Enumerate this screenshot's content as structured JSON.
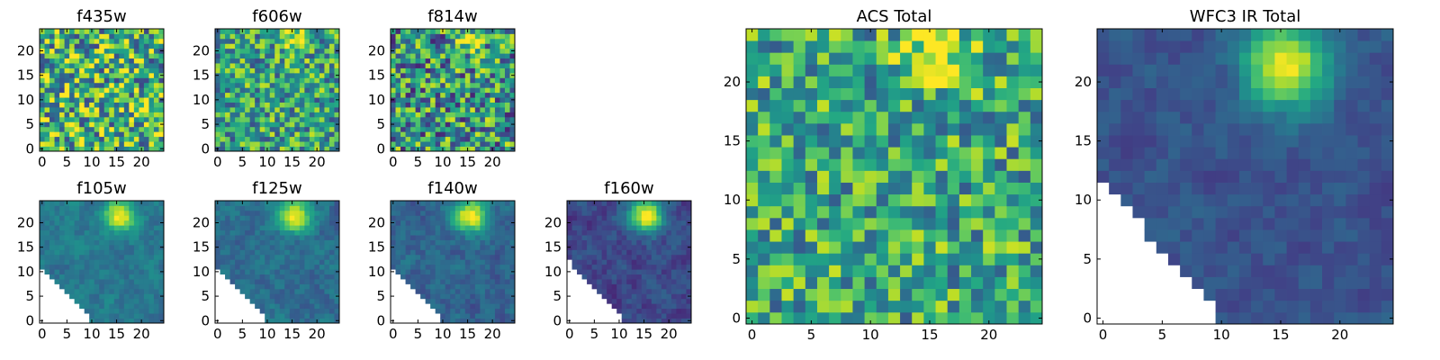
{
  "figure": {
    "colormap": "viridis",
    "background": "#ffffff"
  },
  "chart_data": [
    {
      "type": "heatmap",
      "title": "f435w",
      "xticks": [
        "0",
        "5",
        "10",
        "15",
        "20"
      ],
      "yticks": [
        "0",
        "5",
        "10",
        "15",
        "20"
      ],
      "xlim": [
        0,
        25
      ],
      "ylim": [
        0,
        25
      ],
      "grid": false,
      "content": "noise",
      "seed": 11,
      "mean": 0.66,
      "spread": 0.45,
      "blob": null,
      "mask": null
    },
    {
      "type": "heatmap",
      "title": "f606w",
      "xticks": [
        "0",
        "5",
        "10",
        "15",
        "20"
      ],
      "yticks": [
        "0",
        "5",
        "10",
        "15",
        "20"
      ],
      "xlim": [
        0,
        25
      ],
      "ylim": [
        0,
        25
      ],
      "grid": false,
      "content": "noise",
      "seed": 23,
      "mean": 0.58,
      "spread": 0.34,
      "blob": {
        "x": 15.5,
        "y": 22.0,
        "amp": 0.45,
        "sigma": 1.8
      },
      "mask": null
    },
    {
      "type": "heatmap",
      "title": "f814w",
      "xticks": [
        "0",
        "5",
        "10",
        "15",
        "20"
      ],
      "yticks": [
        "0",
        "5",
        "10",
        "15",
        "20"
      ],
      "xlim": [
        0,
        25
      ],
      "ylim": [
        0,
        25
      ],
      "grid": false,
      "content": "noise",
      "seed": 37,
      "mean": 0.52,
      "spread": 0.42,
      "blob": {
        "x": 15.5,
        "y": 22.0,
        "amp": 0.5,
        "sigma": 1.8
      },
      "mask": null
    },
    {
      "type": "heatmap",
      "title": "f105w",
      "xticks": [
        "0",
        "5",
        "10",
        "15",
        "20"
      ],
      "yticks": [
        "0",
        "5",
        "10",
        "15",
        "20"
      ],
      "xlim": [
        0,
        25
      ],
      "ylim": [
        0,
        25
      ],
      "grid": false,
      "content": "smooth",
      "seed": 41,
      "mean": 0.4,
      "spread": 0.14,
      "blob": {
        "x": 15.5,
        "y": 21.5,
        "amp": 0.62,
        "sigma": 2.2
      },
      "mask": {
        "x0": 10,
        "y_at_x0": 0,
        "slope": 1.1
      }
    },
    {
      "type": "heatmap",
      "title": "f125w",
      "xticks": [
        "0",
        "5",
        "10",
        "15",
        "20"
      ],
      "yticks": [
        "0",
        "5",
        "10",
        "15",
        "20"
      ],
      "xlim": [
        0,
        25
      ],
      "ylim": [
        0,
        25
      ],
      "grid": false,
      "content": "smooth",
      "seed": 53,
      "mean": 0.36,
      "spread": 0.15,
      "blob": {
        "x": 15.5,
        "y": 21.5,
        "amp": 0.66,
        "sigma": 2.3
      },
      "mask": {
        "x0": 10,
        "y_at_x0": 0,
        "slope": 1.1
      }
    },
    {
      "type": "heatmap",
      "title": "f140w",
      "xticks": [
        "0",
        "5",
        "10",
        "15",
        "20"
      ],
      "yticks": [
        "0",
        "5",
        "10",
        "15",
        "20"
      ],
      "xlim": [
        0,
        25
      ],
      "ylim": [
        0,
        25
      ],
      "grid": false,
      "content": "smooth",
      "seed": 67,
      "mean": 0.32,
      "spread": 0.15,
      "blob": {
        "x": 15.5,
        "y": 21.5,
        "amp": 0.7,
        "sigma": 2.4
      },
      "mask": {
        "x0": 10,
        "y_at_x0": 0,
        "slope": 1.1
      }
    },
    {
      "type": "heatmap",
      "title": "f160w",
      "xticks": [
        "0",
        "5",
        "10",
        "15",
        "20"
      ],
      "yticks": [
        "0",
        "5",
        "10",
        "15",
        "20"
      ],
      "xlim": [
        0,
        25
      ],
      "ylim": [
        0,
        25
      ],
      "grid": false,
      "content": "smooth",
      "seed": 79,
      "mean": 0.22,
      "spread": 0.15,
      "blob": {
        "x": 15.5,
        "y": 21.5,
        "amp": 0.8,
        "sigma": 2.4
      },
      "mask": {
        "x0": 11,
        "y_at_x0": 0,
        "slope": 1.1
      }
    },
    {
      "type": "heatmap",
      "title": "ACS Total",
      "xticks": [
        "0",
        "5",
        "10",
        "15",
        "20"
      ],
      "yticks": [
        "0",
        "5",
        "10",
        "15",
        "20"
      ],
      "xlim": [
        0,
        25
      ],
      "ylim": [
        0,
        25
      ],
      "grid": false,
      "content": "noise",
      "seed": 97,
      "mean": 0.6,
      "spread": 0.32,
      "blob": {
        "x": 15.5,
        "y": 22.5,
        "amp": 0.45,
        "sigma": 1.9
      },
      "mask": null
    },
    {
      "type": "heatmap",
      "title": "WFC3 IR Total",
      "xticks": [
        "0",
        "5",
        "10",
        "15",
        "20"
      ],
      "yticks": [
        "0",
        "5",
        "10",
        "15",
        "20"
      ],
      "xlim": [
        0,
        25
      ],
      "ylim": [
        0,
        25
      ],
      "grid": false,
      "content": "smooth",
      "seed": 113,
      "mean": 0.26,
      "spread": 0.12,
      "blob": {
        "x": 15.5,
        "y": 21.5,
        "amp": 0.75,
        "sigma": 2.5
      },
      "mask": {
        "x0": 10,
        "y_at_x0": 0,
        "slope": 1.15
      }
    }
  ]
}
